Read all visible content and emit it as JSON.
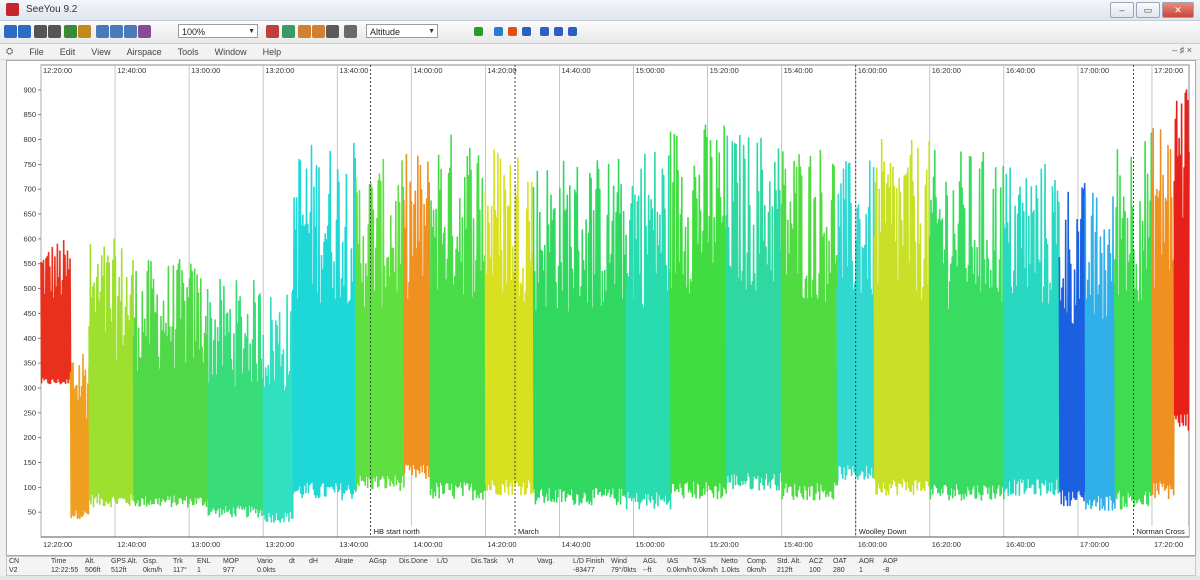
{
  "window": {
    "title": "SeeYou 9.2",
    "buttons": [
      "–",
      "▭",
      "✕"
    ]
  },
  "toolbar": {
    "zoom_value": "100%",
    "graph_select": "Altitude",
    "icons": [
      "open-icon",
      "save-icon",
      "print-icon",
      "print-preview-icon",
      "wind-icon",
      "thermal-icon",
      "zoom-in-icon",
      "zoom-out-icon",
      "zoom-fit-icon",
      "task-icon",
      "airspace-icon",
      "waypoint-icon",
      "flight-icon",
      "trace-icon",
      "graph-icon",
      "clock-icon",
      "play-icon",
      "pause-icon",
      "stop-icon",
      "rewind-icon",
      "step-back-icon",
      "step-forward-icon",
      "fast-forward-icon"
    ]
  },
  "menu": {
    "items": [
      "File",
      "Edit",
      "View",
      "Airspace",
      "Tools",
      "Window",
      "Help"
    ],
    "mdi_controls": "– ♯ ×"
  },
  "chart_data": {
    "type": "line",
    "title": "",
    "xlabel": "",
    "ylabel": "",
    "x_start": "12:20:00",
    "x_end": "17:30:00",
    "ylim": [
      0,
      950
    ],
    "y_ticks": [
      50,
      100,
      150,
      200,
      250,
      300,
      350,
      400,
      450,
      500,
      550,
      600,
      650,
      700,
      750,
      800,
      850,
      900
    ],
    "x_ticks": [
      "12:20:00",
      "12:40:00",
      "13:00:00",
      "13:20:00",
      "13:40:00",
      "14:00:00",
      "14:20:00",
      "14:40:00",
      "15:00:00",
      "15:20:00",
      "15:40:00",
      "16:00:00",
      "16:20:00",
      "16:40:00",
      "17:00:00",
      "17:20:00"
    ],
    "grid": true,
    "colormap": "altitude/vario rainbow (red-orange-yellow-green-cyan-blue)",
    "colors": {
      "red": "#e8201a",
      "orange": "#f08c1a",
      "yellow": "#e6e619",
      "green": "#2ed84a",
      "cyan": "#1ee0e0",
      "blue": "#1a50e0"
    },
    "markers": [
      {
        "label": "HB start north",
        "time": "13:49:00"
      },
      {
        "label": "March",
        "time": "14:28:00"
      },
      {
        "label": "Woolley Down",
        "time": "16:00:00"
      },
      {
        "label": "Norman Cross",
        "time": "17:15:00"
      }
    ],
    "segments": [
      {
        "from": "12:20:00",
        "to": "12:28:00",
        "low": 300,
        "high": 600,
        "color": "#e8301c"
      },
      {
        "from": "12:28:00",
        "to": "12:33:00",
        "low": 30,
        "high": 400,
        "color": "#f0a020"
      },
      {
        "from": "12:33:00",
        "to": "12:45:00",
        "low": 50,
        "high": 600,
        "color": "#9ee030"
      },
      {
        "from": "12:45:00",
        "to": "13:05:00",
        "low": 50,
        "high": 560,
        "color": "#50d848"
      },
      {
        "from": "13:05:00",
        "to": "13:20:00",
        "low": 30,
        "high": 520,
        "color": "#38dc78"
      },
      {
        "from": "13:20:00",
        "to": "13:28:00",
        "low": 20,
        "high": 500,
        "color": "#30e0c0"
      },
      {
        "from": "13:28:00",
        "to": "13:45:00",
        "low": 60,
        "high": 800,
        "color": "#1ed8d8"
      },
      {
        "from": "13:45:00",
        "to": "13:58:00",
        "low": 80,
        "high": 760,
        "color": "#60e040"
      },
      {
        "from": "13:58:00",
        "to": "14:05:00",
        "low": 100,
        "high": 780,
        "color": "#f09020"
      },
      {
        "from": "14:05:00",
        "to": "14:20:00",
        "low": 60,
        "high": 820,
        "color": "#48dc48"
      },
      {
        "from": "14:20:00",
        "to": "14:33:00",
        "low": 70,
        "high": 800,
        "color": "#d8e020"
      },
      {
        "from": "14:33:00",
        "to": "14:58:00",
        "low": 50,
        "high": 770,
        "color": "#30d860"
      },
      {
        "from": "14:58:00",
        "to": "15:10:00",
        "low": 40,
        "high": 800,
        "color": "#28dcb0"
      },
      {
        "from": "15:10:00",
        "to": "15:25:00",
        "low": 60,
        "high": 840,
        "color": "#40dc40"
      },
      {
        "from": "15:25:00",
        "to": "15:40:00",
        "low": 80,
        "high": 820,
        "color": "#2ed8a0"
      },
      {
        "from": "15:40:00",
        "to": "15:55:00",
        "low": 60,
        "high": 800,
        "color": "#50dc40"
      },
      {
        "from": "15:55:00",
        "to": "16:05:00",
        "low": 100,
        "high": 760,
        "color": "#30d8d0"
      },
      {
        "from": "16:05:00",
        "to": "16:20:00",
        "low": 70,
        "high": 800,
        "color": "#c8e028"
      },
      {
        "from": "16:20:00",
        "to": "16:40:00",
        "low": 60,
        "high": 780,
        "color": "#38dc60"
      },
      {
        "from": "16:40:00",
        "to": "16:55:00",
        "low": 70,
        "high": 760,
        "color": "#28d8c0"
      },
      {
        "from": "16:55:00",
        "to": "17:02:00",
        "low": 50,
        "high": 720,
        "color": "#1a60e0"
      },
      {
        "from": "17:02:00",
        "to": "17:10:00",
        "low": 40,
        "high": 700,
        "color": "#30b0e8"
      },
      {
        "from": "17:10:00",
        "to": "17:20:00",
        "low": 40,
        "high": 820,
        "color": "#40dc50"
      },
      {
        "from": "17:20:00",
        "to": "17:26:00",
        "low": 60,
        "high": 850,
        "color": "#f09020"
      },
      {
        "from": "17:26:00",
        "to": "17:30:00",
        "low": 200,
        "high": 940,
        "color": "#e8201a"
      }
    ]
  },
  "status_bar": {
    "headers": [
      "CN",
      "Time",
      "Alt.",
      "GPS Alt.",
      "Gsp.",
      "Trk",
      "ENL",
      "MOP",
      "Vario",
      "dt",
      "dH",
      "Alrate",
      "AGsp",
      "Dis.Done",
      "L/D",
      "Dis.Task",
      "Vt",
      "Vavg.",
      "L/D Finish",
      "Wind",
      "AGL",
      "IAS",
      "TAS",
      "Netto",
      "Comp.",
      "Std. Alt.",
      "ACZ",
      "OAT",
      "AOR",
      "AOP"
    ],
    "values": [
      "V2",
      "12:22:55",
      "506ft",
      "512ft",
      "0km/h",
      "117°",
      "1",
      "977",
      "0.0kts",
      "",
      "",
      "",
      "",
      "",
      "",
      "",
      "",
      "",
      "-83477",
      "79°/0kts",
      "--ft",
      "0.0km/h",
      "0.0km/h",
      "1.0kts",
      "0km/h",
      "212ft",
      "100",
      "280",
      "1",
      "-8"
    ]
  }
}
